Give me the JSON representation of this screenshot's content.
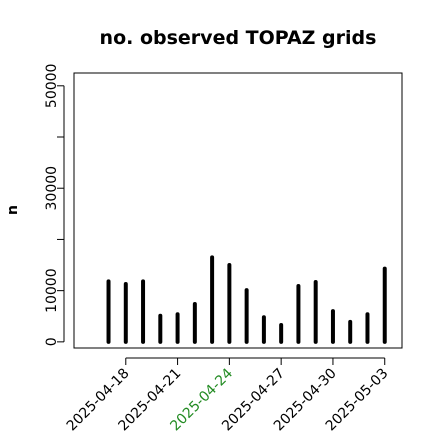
{
  "chart_data": {
    "type": "bar",
    "title": "no. observed TOPAZ grids",
    "ylabel": "n",
    "xlabel": "",
    "ylim": [
      -1200,
      52500
    ],
    "xlim": [
      "2025-04-15",
      "2025-05-04"
    ],
    "y_ticks": [
      0,
      10000,
      20000,
      30000,
      40000,
      50000
    ],
    "y_tick_labels": [
      "0",
      "10000",
      "",
      "30000",
      "",
      "50000"
    ],
    "x_ticks": [
      {
        "date": "2025-04-18",
        "label": "2025-04-18",
        "color": "#000000"
      },
      {
        "date": "2025-04-21",
        "label": "2025-04-21",
        "color": "#000000"
      },
      {
        "date": "2025-04-24",
        "label": "2025-04-24",
        "color": "#228B22"
      },
      {
        "date": "2025-04-27",
        "label": "2025-04-27",
        "color": "#000000"
      },
      {
        "date": "2025-04-30",
        "label": "2025-04-30",
        "color": "#000000"
      },
      {
        "date": "2025-05-03",
        "label": "2025-05-03",
        "color": "#000000"
      }
    ],
    "dates": [
      "2025-04-17",
      "2025-04-18",
      "2025-04-19",
      "2025-04-20",
      "2025-04-21",
      "2025-04-22",
      "2025-04-23",
      "2025-04-24",
      "2025-04-25",
      "2025-04-26",
      "2025-04-27",
      "2025-04-28",
      "2025-04-29",
      "2025-04-30",
      "2025-05-01",
      "2025-05-02",
      "2025-05-03"
    ],
    "values": [
      11800,
      11300,
      11800,
      5100,
      5400,
      7400,
      16500,
      15000,
      10100,
      4800,
      3300,
      10900,
      11700,
      6000,
      3900,
      5400,
      14300
    ],
    "bar_color": "#000000",
    "grid": false
  }
}
